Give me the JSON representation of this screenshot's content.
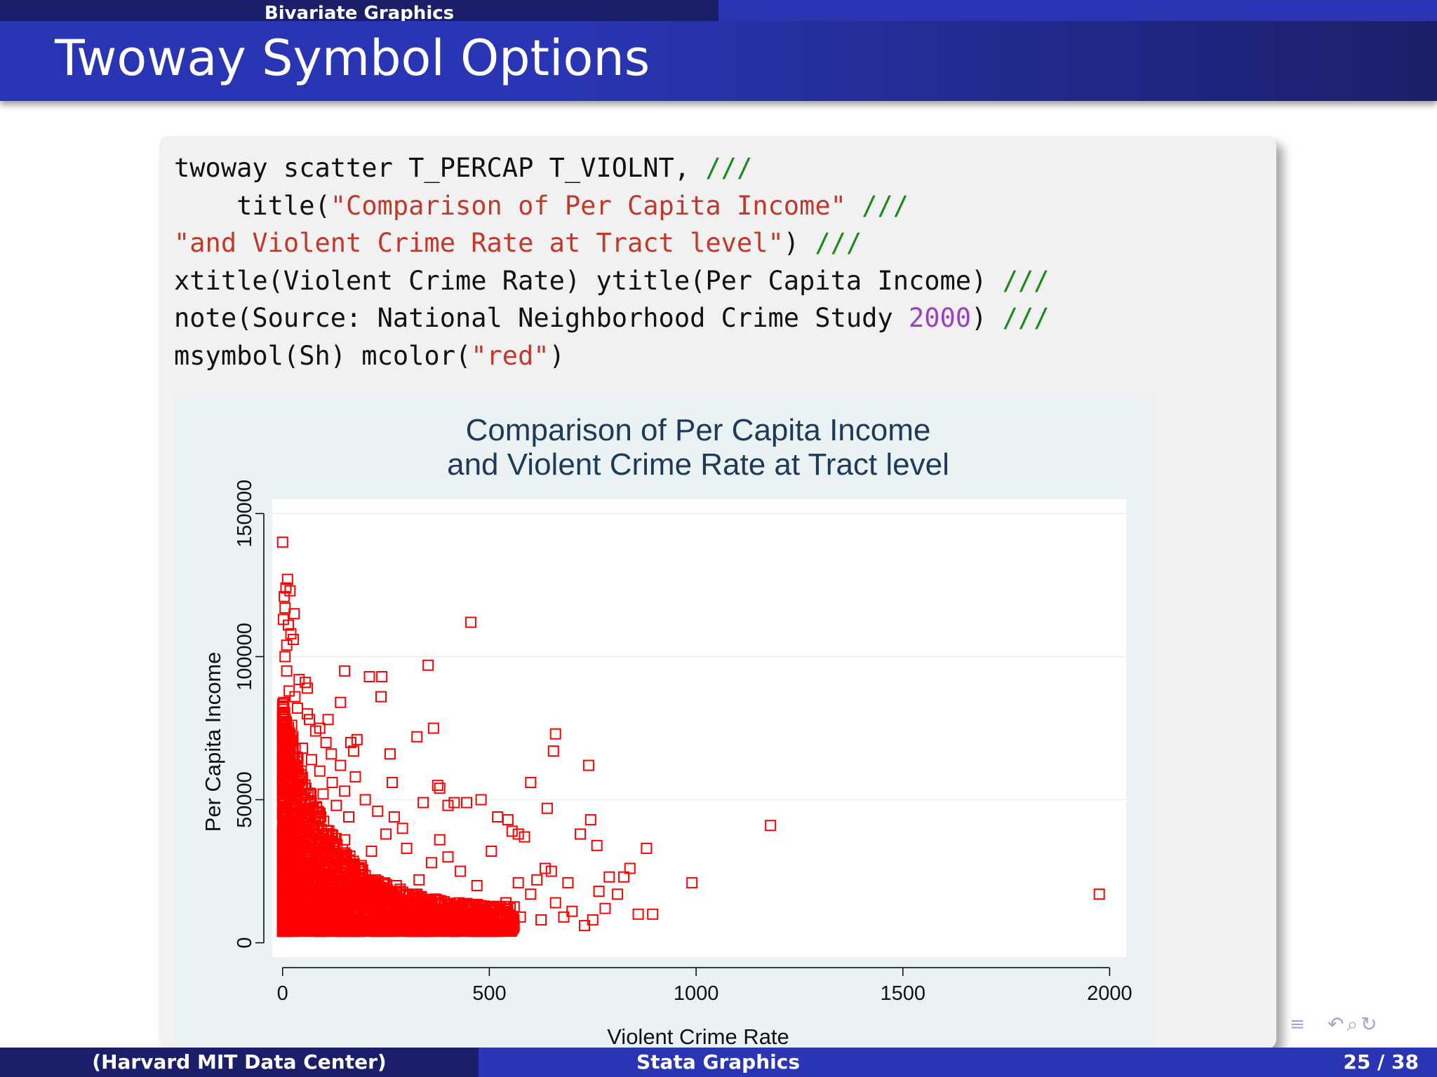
{
  "header": {
    "section_title": "Bivariate Graphics",
    "frame_title": "Twoway Symbol Options"
  },
  "code": {
    "lines": [
      [
        {
          "t": "twoway scatter T_PERCAP T_VIOLNT, ",
          "c": "plain"
        },
        {
          "t": "///",
          "c": "cmt"
        }
      ],
      [
        {
          "t": "    title(",
          "c": "plain"
        },
        {
          "t": "\"Comparison of Per Capita Income\"",
          "c": "str"
        },
        {
          "t": " ",
          "c": "plain"
        },
        {
          "t": "///",
          "c": "cmt"
        }
      ],
      [
        {
          "t": "\"and Violent Crime Rate at Tract level\"",
          "c": "str"
        },
        {
          "t": ") ",
          "c": "plain"
        },
        {
          "t": "///",
          "c": "cmt"
        }
      ],
      [
        {
          "t": "xtitle(Violent Crime Rate) ytitle(Per Capita Income) ",
          "c": "plain"
        },
        {
          "t": "///",
          "c": "cmt"
        }
      ],
      [
        {
          "t": "note(Source: National Neighborhood Crime Study ",
          "c": "plain"
        },
        {
          "t": "2000",
          "c": "num"
        },
        {
          "t": ") ",
          "c": "plain"
        },
        {
          "t": "///",
          "c": "cmt"
        }
      ],
      [
        {
          "t": "msymbol(Sh) mcolor(",
          "c": "plain"
        },
        {
          "t": "\"red\"",
          "c": "str"
        },
        {
          "t": ")",
          "c": "plain"
        }
      ]
    ]
  },
  "chart_data": {
    "type": "scatter",
    "title": "Comparison of Per Capita Income",
    "subtitle": "and Violent Crime Rate at Tract level",
    "xlabel": "Violent Crime Rate",
    "ylabel": "Per Capita Income",
    "xlim": [
      -25,
      2040
    ],
    "ylim": [
      -5000,
      155000
    ],
    "xticks": [
      "0",
      "500",
      "1000",
      "1500",
      "2000"
    ],
    "xtick_values": [
      0,
      500,
      1000,
      1500,
      2000
    ],
    "yticks": [
      "0",
      "50000",
      "100000",
      "150000"
    ],
    "ytick_values": [
      0,
      50000,
      100000,
      150000
    ],
    "grid": true,
    "marker": "hollow-square",
    "marker_color": "#ff0000",
    "points": [
      [
        0,
        140000
      ],
      [
        12,
        127000
      ],
      [
        8,
        124000
      ],
      [
        18,
        123000
      ],
      [
        4,
        121000
      ],
      [
        6,
        117000
      ],
      [
        28,
        115000
      ],
      [
        2,
        113000
      ],
      [
        14,
        111000
      ],
      [
        20,
        108000
      ],
      [
        26,
        106000
      ],
      [
        10,
        104000
      ],
      [
        455,
        112000
      ],
      [
        352,
        97000
      ],
      [
        150,
        95000
      ],
      [
        210,
        93000
      ],
      [
        240,
        93000
      ],
      [
        238,
        86000
      ],
      [
        60,
        89000
      ],
      [
        55,
        91000
      ],
      [
        40,
        92000
      ],
      [
        30,
        86000
      ],
      [
        140,
        84000
      ],
      [
        110,
        78000
      ],
      [
        365,
        75000
      ],
      [
        65,
        78000
      ],
      [
        90,
        75000
      ],
      [
        25,
        72000
      ],
      [
        325,
        72000
      ],
      [
        165,
        70000
      ],
      [
        180,
        71000
      ],
      [
        172,
        67000
      ],
      [
        260,
        66000
      ],
      [
        660,
        73000
      ],
      [
        655,
        67000
      ],
      [
        740,
        62000
      ],
      [
        600,
        56000
      ],
      [
        265,
        56000
      ],
      [
        375,
        55000
      ],
      [
        380,
        54000
      ],
      [
        150,
        53000
      ],
      [
        340,
        49000
      ],
      [
        415,
        49000
      ],
      [
        445,
        49000
      ],
      [
        480,
        50000
      ],
      [
        400,
        48000
      ],
      [
        640,
        47000
      ],
      [
        520,
        44000
      ],
      [
        545,
        43000
      ],
      [
        745,
        43000
      ],
      [
        1180,
        41000
      ],
      [
        720,
        38000
      ],
      [
        585,
        37000
      ],
      [
        555,
        39000
      ],
      [
        570,
        38000
      ],
      [
        760,
        34000
      ],
      [
        880,
        33000
      ],
      [
        505,
        32000
      ],
      [
        635,
        26000
      ],
      [
        840,
        26000
      ],
      [
        825,
        23000
      ],
      [
        790,
        23000
      ],
      [
        690,
        21000
      ],
      [
        990,
        21000
      ],
      [
        765,
        18000
      ],
      [
        810,
        17000
      ],
      [
        1975,
        17000
      ],
      [
        780,
        12000
      ],
      [
        860,
        10000
      ],
      [
        895,
        10000
      ],
      [
        750,
        8000
      ],
      [
        680,
        9000
      ],
      [
        730,
        6000
      ],
      [
        650,
        25000
      ],
      [
        615,
        22000
      ],
      [
        570,
        21000
      ],
      [
        600,
        17000
      ],
      [
        660,
        14000
      ],
      [
        700,
        11000
      ],
      [
        540,
        14000
      ],
      [
        510,
        11000
      ],
      [
        480,
        8000
      ],
      [
        520,
        5000
      ],
      [
        470,
        20000
      ],
      [
        430,
        25000
      ],
      [
        400,
        30000
      ],
      [
        380,
        36000
      ],
      [
        360,
        28000
      ],
      [
        330,
        22000
      ],
      [
        300,
        33000
      ],
      [
        290,
        40000
      ],
      [
        270,
        44000
      ],
      [
        250,
        38000
      ],
      [
        230,
        46000
      ],
      [
        215,
        32000
      ],
      [
        200,
        50000
      ],
      [
        190,
        27000
      ],
      [
        176,
        58000
      ],
      [
        160,
        44000
      ],
      [
        150,
        36000
      ],
      [
        140,
        62000
      ],
      [
        130,
        48000
      ],
      [
        120,
        56000
      ],
      [
        118,
        66000
      ],
      [
        105,
        70000
      ],
      [
        98,
        52000
      ],
      [
        90,
        60000
      ],
      [
        80,
        74000
      ],
      [
        70,
        64000
      ],
      [
        60,
        80000
      ],
      [
        48,
        68000
      ],
      [
        36,
        82000
      ],
      [
        22,
        76000
      ],
      [
        16,
        88000
      ],
      [
        10,
        95000
      ],
      [
        6,
        100000
      ],
      [
        3,
        84000
      ],
      [
        5,
        70000
      ],
      [
        2,
        62000
      ],
      [
        8,
        58000
      ],
      [
        20,
        54000
      ],
      [
        35,
        50000
      ],
      [
        45,
        46000
      ],
      [
        55,
        44000
      ],
      [
        75,
        40000
      ],
      [
        95,
        38000
      ],
      [
        125,
        34000
      ],
      [
        155,
        30000
      ],
      [
        185,
        26000
      ],
      [
        225,
        22000
      ],
      [
        275,
        20000
      ],
      [
        325,
        17000
      ],
      [
        375,
        14000
      ],
      [
        425,
        12000
      ],
      [
        475,
        11000
      ],
      [
        575,
        9000
      ],
      [
        625,
        8000
      ],
      [
        560,
        6000
      ],
      [
        505,
        4000
      ],
      [
        440,
        5000
      ],
      [
        400,
        7000
      ],
      [
        350,
        6000
      ],
      [
        300,
        8000
      ],
      [
        260,
        5000
      ],
      [
        220,
        6000
      ],
      [
        180,
        7000
      ],
      [
        140,
        5000
      ],
      [
        100,
        4000
      ],
      [
        60,
        6000
      ],
      [
        30,
        5000
      ],
      [
        15,
        8000
      ],
      [
        265,
        4000
      ],
      [
        300,
        11000
      ]
    ]
  },
  "footer": {
    "author": "(Harvard MIT Data Center)",
    "short_title": "Stata Graphics",
    "page": "25 / 38"
  },
  "nav": {
    "toc_icon": "table-of-contents-icon",
    "icons": [
      "search-back-icon",
      "search-icon",
      "refresh-icon"
    ]
  }
}
